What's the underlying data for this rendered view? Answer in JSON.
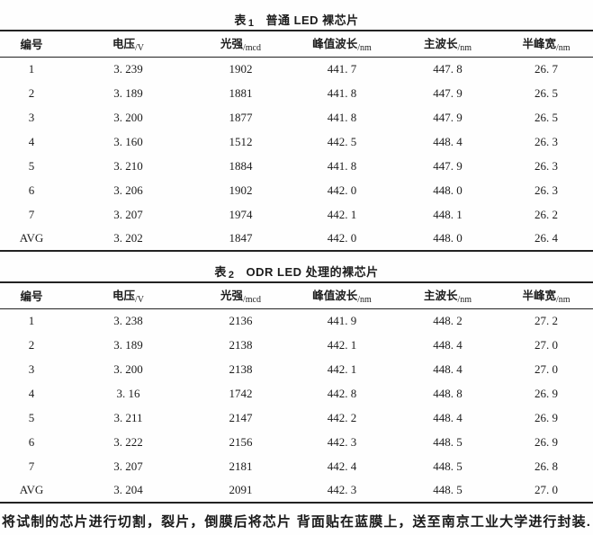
{
  "tables": [
    {
      "title_prefix": "表",
      "title_num": "1",
      "title_text": "普通 LED 裸芯片",
      "columns": [
        {
          "label": "编号",
          "unit": ""
        },
        {
          "label": "电压",
          "unit": "/V"
        },
        {
          "label": "光强",
          "unit": "/mcd"
        },
        {
          "label": "峰值波长",
          "unit": "/nm"
        },
        {
          "label": "主波长",
          "unit": "/nm"
        },
        {
          "label": "半峰宽",
          "unit": "/nm"
        }
      ],
      "rows": [
        [
          "1",
          "3. 239",
          "1902",
          "441. 7",
          "447. 8",
          "26. 7"
        ],
        [
          "2",
          "3. 189",
          "1881",
          "441. 8",
          "447. 9",
          "26. 5"
        ],
        [
          "3",
          "3. 200",
          "1877",
          "441. 8",
          "447. 9",
          "26. 5"
        ],
        [
          "4",
          "3. 160",
          "1512",
          "442. 5",
          "448. 4",
          "26. 3"
        ],
        [
          "5",
          "3. 210",
          "1884",
          "441. 8",
          "447. 9",
          "26. 3"
        ],
        [
          "6",
          "3. 206",
          "1902",
          "442. 0",
          "448. 0",
          "26. 3"
        ],
        [
          "7",
          "3. 207",
          "1974",
          "442. 1",
          "448. 1",
          "26. 2"
        ],
        [
          "AVG",
          "3. 202",
          "1847",
          "442. 0",
          "448. 0",
          "26. 4"
        ]
      ]
    },
    {
      "title_prefix": "表",
      "title_num": "2",
      "title_text": "ODR LED 处理的裸芯片",
      "columns": [
        {
          "label": "编号",
          "unit": ""
        },
        {
          "label": "电压",
          "unit": "/V"
        },
        {
          "label": "光强",
          "unit": "/mcd"
        },
        {
          "label": "峰值波长",
          "unit": "/nm"
        },
        {
          "label": "主波长",
          "unit": "/nm"
        },
        {
          "label": "半峰宽",
          "unit": "/nm"
        }
      ],
      "rows": [
        [
          "1",
          "3. 238",
          "2136",
          "441. 9",
          "448. 2",
          "27. 2"
        ],
        [
          "2",
          "3. 189",
          "2138",
          "442. 1",
          "448. 4",
          "27. 0"
        ],
        [
          "3",
          "3. 200",
          "2138",
          "442. 1",
          "448. 4",
          "27. 0"
        ],
        [
          "4",
          "3. 16",
          "1742",
          "442. 8",
          "448. 8",
          "26. 9"
        ],
        [
          "5",
          "3. 211",
          "2147",
          "442. 2",
          "448. 4",
          "26. 9"
        ],
        [
          "6",
          "3. 222",
          "2156",
          "442. 3",
          "448. 5",
          "26. 9"
        ],
        [
          "7",
          "3. 207",
          "2181",
          "442. 4",
          "448. 5",
          "26. 8"
        ],
        [
          "AVG",
          "3. 204",
          "2091",
          "442. 3",
          "448. 5",
          "27. 0"
        ]
      ]
    }
  ],
  "footer": {
    "left": "将试制的芯片进行切割，裂片，倒膜后将芯片",
    "right": "背面贴在蓝膜上，送至南京工业大学进行封装."
  }
}
